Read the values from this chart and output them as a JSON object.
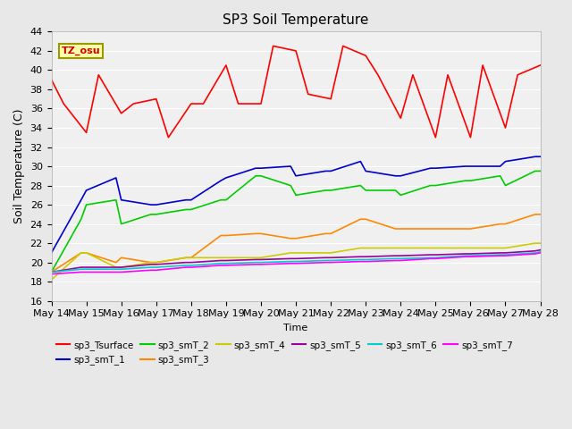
{
  "title": "SP3 Soil Temperature",
  "xlabel": "Time",
  "ylabel": "Soil Temperature (C)",
  "ylim": [
    16,
    44
  ],
  "yticks": [
    16,
    18,
    20,
    22,
    24,
    26,
    28,
    30,
    32,
    34,
    36,
    38,
    40,
    42,
    44
  ],
  "tz_label": "TZ_osu",
  "x_labels": [
    "May 14",
    "May 15",
    "May 16",
    "May 17",
    "May 18",
    "May 19",
    "May 20",
    "May 21",
    "May 22",
    "May 23",
    "May 24",
    "May 25",
    "May 26",
    "May 27",
    "May 28"
  ],
  "legend": [
    {
      "label": "sp3_Tsurface",
      "color": "#ff0000"
    },
    {
      "label": "sp3_smT_1",
      "color": "#0000cc"
    },
    {
      "label": "sp3_smT_2",
      "color": "#00cc00"
    },
    {
      "label": "sp3_smT_3",
      "color": "#ff8800"
    },
    {
      "label": "sp3_smT_4",
      "color": "#cccc00"
    },
    {
      "label": "sp3_smT_5",
      "color": "#990099"
    },
    {
      "label": "sp3_smT_6",
      "color": "#00cccc"
    },
    {
      "label": "sp3_smT_7",
      "color": "#ff00ff"
    }
  ],
  "series": {
    "sp3_Tsurface": {
      "color": "#ff0000",
      "x": [
        0,
        0.35,
        1.0,
        1.35,
        2.0,
        2.35,
        3.0,
        3.35,
        4.0,
        4.35,
        5.0,
        5.35,
        6.0,
        6.35,
        7.0,
        7.35,
        8.0,
        8.35,
        9.0,
        9.35,
        10.0,
        10.35,
        11.0,
        11.35,
        12.0,
        12.35,
        13.0,
        13.35,
        14.0
      ],
      "y": [
        39.0,
        36.5,
        33.5,
        39.5,
        35.5,
        36.5,
        37.0,
        33.0,
        36.5,
        36.5,
        40.5,
        36.5,
        36.5,
        42.5,
        42.0,
        37.5,
        37.0,
        42.5,
        41.5,
        39.5,
        35.0,
        39.5,
        33.0,
        39.5,
        33.0,
        40.5,
        34.0,
        39.5,
        40.5
      ]
    },
    "sp3_smT_1": {
      "color": "#0000cc",
      "x": [
        0.0,
        0.85,
        1.0,
        1.85,
        2.0,
        2.85,
        3.0,
        3.85,
        4.0,
        4.85,
        5.0,
        5.85,
        6.0,
        6.85,
        7.0,
        7.85,
        8.0,
        8.85,
        9.0,
        9.85,
        10.0,
        10.85,
        11.0,
        11.85,
        12.0,
        12.85,
        13.0,
        13.85,
        14.0
      ],
      "y": [
        21.0,
        26.5,
        27.5,
        28.8,
        26.5,
        26.0,
        26.0,
        26.5,
        26.5,
        28.5,
        28.8,
        29.8,
        29.8,
        30.0,
        29.0,
        29.5,
        29.5,
        30.5,
        29.5,
        29.0,
        29.0,
        29.8,
        29.8,
        30.0,
        30.0,
        30.0,
        30.5,
        31.0,
        31.0
      ]
    },
    "sp3_smT_2": {
      "color": "#00cc00",
      "x": [
        0.0,
        0.85,
        1.0,
        1.85,
        2.0,
        2.85,
        3.0,
        3.85,
        4.0,
        4.85,
        5.0,
        5.85,
        6.0,
        6.85,
        7.0,
        7.85,
        8.0,
        8.85,
        9.0,
        9.85,
        10.0,
        10.85,
        11.0,
        11.85,
        12.0,
        12.85,
        13.0,
        13.85,
        14.0
      ],
      "y": [
        19.0,
        24.5,
        26.0,
        26.5,
        24.0,
        25.0,
        25.0,
        25.5,
        25.5,
        26.5,
        26.5,
        29.0,
        29.0,
        28.0,
        27.0,
        27.5,
        27.5,
        28.0,
        27.5,
        27.5,
        27.0,
        28.0,
        28.0,
        28.5,
        28.5,
        29.0,
        28.0,
        29.5,
        29.5
      ]
    },
    "sp3_smT_3": {
      "color": "#ff8800",
      "x": [
        0.0,
        0.85,
        1.0,
        1.85,
        2.0,
        2.85,
        3.0,
        3.85,
        4.0,
        4.85,
        5.0,
        5.85,
        6.0,
        6.85,
        7.0,
        7.85,
        8.0,
        8.85,
        9.0,
        9.85,
        10.0,
        10.85,
        11.0,
        11.85,
        12.0,
        12.85,
        13.0,
        13.85,
        14.0
      ],
      "y": [
        19.0,
        21.0,
        21.0,
        20.0,
        20.5,
        20.0,
        20.0,
        20.5,
        20.5,
        22.8,
        22.8,
        23.0,
        23.0,
        22.5,
        22.5,
        23.0,
        23.0,
        24.5,
        24.5,
        23.5,
        23.5,
        23.5,
        23.5,
        23.5,
        23.5,
        24.0,
        24.0,
        25.0,
        25.0
      ]
    },
    "sp3_smT_4": {
      "color": "#cccc00",
      "x": [
        0.0,
        0.85,
        1.0,
        1.85,
        2.0,
        2.85,
        3.0,
        3.85,
        4.0,
        4.85,
        5.0,
        5.85,
        6.0,
        6.85,
        7.0,
        7.85,
        8.0,
        8.85,
        9.0,
        9.85,
        10.0,
        10.85,
        11.0,
        11.85,
        12.0,
        12.85,
        13.0,
        13.85,
        14.0
      ],
      "y": [
        18.2,
        21.0,
        21.0,
        19.5,
        19.5,
        20.0,
        20.0,
        20.5,
        20.5,
        20.5,
        20.5,
        20.5,
        20.5,
        21.0,
        21.0,
        21.0,
        21.0,
        21.5,
        21.5,
        21.5,
        21.5,
        21.5,
        21.5,
        21.5,
        21.5,
        21.5,
        21.5,
        22.0,
        22.0
      ]
    },
    "sp3_smT_5": {
      "color": "#990099",
      "x": [
        0.0,
        0.85,
        1.0,
        1.85,
        2.0,
        2.85,
        3.0,
        3.85,
        4.0,
        4.85,
        5.0,
        5.85,
        6.0,
        6.85,
        7.0,
        7.85,
        8.0,
        8.85,
        9.0,
        9.85,
        10.0,
        10.85,
        11.0,
        11.85,
        12.0,
        12.85,
        13.0,
        13.85,
        14.0
      ],
      "y": [
        19.0,
        19.5,
        19.5,
        19.5,
        19.5,
        19.8,
        19.8,
        20.0,
        20.0,
        20.2,
        20.2,
        20.3,
        20.3,
        20.4,
        20.4,
        20.5,
        20.5,
        20.6,
        20.6,
        20.7,
        20.7,
        20.8,
        20.8,
        20.9,
        20.9,
        21.0,
        21.0,
        21.2,
        21.3
      ]
    },
    "sp3_smT_6": {
      "color": "#00cccc",
      "x": [
        0.0,
        0.85,
        1.0,
        1.85,
        2.0,
        2.85,
        3.0,
        3.85,
        4.0,
        4.85,
        5.0,
        5.85,
        6.0,
        6.85,
        7.0,
        7.85,
        8.0,
        8.85,
        9.0,
        9.85,
        10.0,
        10.85,
        11.0,
        11.85,
        12.0,
        12.85,
        13.0,
        13.85,
        14.0
      ],
      "y": [
        19.0,
        19.3,
        19.3,
        19.3,
        19.3,
        19.5,
        19.5,
        19.7,
        19.7,
        19.9,
        19.9,
        20.0,
        20.0,
        20.1,
        20.1,
        20.2,
        20.2,
        20.3,
        20.3,
        20.4,
        20.4,
        20.5,
        20.5,
        20.7,
        20.7,
        20.8,
        20.8,
        21.0,
        21.1
      ]
    },
    "sp3_smT_7": {
      "color": "#ff00ff",
      "x": [
        0.0,
        0.85,
        1.0,
        1.85,
        2.0,
        2.85,
        3.0,
        3.85,
        4.0,
        4.85,
        5.0,
        5.85,
        6.0,
        6.85,
        7.0,
        7.85,
        8.0,
        8.85,
        9.0,
        9.85,
        10.0,
        10.85,
        11.0,
        11.85,
        12.0,
        12.85,
        13.0,
        13.85,
        14.0
      ],
      "y": [
        18.8,
        19.0,
        19.0,
        19.0,
        19.0,
        19.2,
        19.2,
        19.5,
        19.5,
        19.7,
        19.7,
        19.8,
        19.8,
        19.9,
        19.9,
        20.0,
        20.0,
        20.1,
        20.1,
        20.2,
        20.2,
        20.4,
        20.4,
        20.6,
        20.6,
        20.7,
        20.7,
        20.9,
        21.0
      ]
    }
  },
  "figsize": [
    6.4,
    4.8
  ],
  "dpi": 100,
  "background_color": "#e8e8e8",
  "plot_bg_color": "#f0f0f0",
  "grid_color": "#ffffff"
}
